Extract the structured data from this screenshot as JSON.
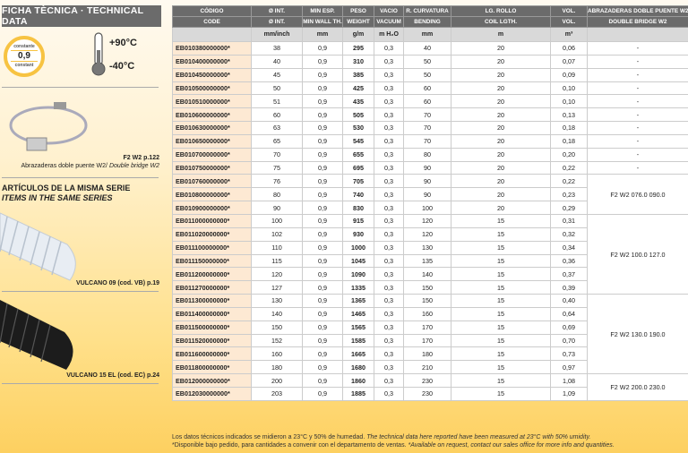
{
  "left": {
    "title": "FICHA TÈCNICA · TECHNICAL DATA",
    "badge": {
      "top": "constante",
      "value": "0,9",
      "bottom": "constant"
    },
    "temp_max": "+90°C",
    "temp_min": "-40°C",
    "accessory": {
      "code": "F2 W2 p.122",
      "desc_es": "Abrazaderas doble puente W2/",
      "desc_en": "Double bridge W2"
    },
    "series_title_es": "ARTÍCULOS DE LA MISMA SERIE",
    "series_title_en": "ITEMS IN THE SAME SERIES",
    "series": [
      {
        "label": "VULCANO 09 (cod. VB) p.19"
      },
      {
        "label": "VULCANO 15 EL (cod. EC) p.24"
      }
    ]
  },
  "table": {
    "header_es": [
      "CÓDIGO",
      "Ø INT.",
      "MIN ESP.",
      "PESO",
      "VACIO",
      "R. CURVATURA",
      "LG. ROLLO",
      "VOL.",
      "ABRAZADERAS DOBLE PUENTE W2"
    ],
    "header_en": [
      "CODE",
      "Ø INT.",
      "MIN WALL TH.",
      "WEIGHT",
      "VACUUM",
      "BENDING",
      "COIL LGTH.",
      "VOL.",
      "DOUBLE BRIDGE W2"
    ],
    "units": [
      "",
      "mm/inch",
      "mm",
      "g/m",
      "m H₂O",
      "mm",
      "m",
      "m³",
      ""
    ],
    "rows": [
      [
        "EB010380000000*",
        "38",
        "0,9",
        "295",
        "0,3",
        "40",
        "20",
        "0,06"
      ],
      [
        "EB010400000000*",
        "40",
        "0,9",
        "310",
        "0,3",
        "50",
        "20",
        "0,07"
      ],
      [
        "EB010450000000*",
        "45",
        "0,9",
        "385",
        "0,3",
        "50",
        "20",
        "0,09"
      ],
      [
        "EB010500000000*",
        "50",
        "0,9",
        "425",
        "0,3",
        "60",
        "20",
        "0,10"
      ],
      [
        "EB010510000000*",
        "51",
        "0,9",
        "435",
        "0,3",
        "60",
        "20",
        "0,10"
      ],
      [
        "EB010600000000*",
        "60",
        "0,9",
        "505",
        "0,3",
        "70",
        "20",
        "0,13"
      ],
      [
        "EB010630000000*",
        "63",
        "0,9",
        "530",
        "0,3",
        "70",
        "20",
        "0,18"
      ],
      [
        "EB010650000000*",
        "65",
        "0,9",
        "545",
        "0,3",
        "70",
        "20",
        "0,18"
      ],
      [
        "EB010700000000*",
        "70",
        "0,9",
        "655",
        "0,3",
        "80",
        "20",
        "0,20"
      ],
      [
        "EB010750000000*",
        "75",
        "0,9",
        "695",
        "0,3",
        "90",
        "20",
        "0,22"
      ],
      [
        "EB010760000000*",
        "76",
        "0,9",
        "705",
        "0,3",
        "90",
        "20",
        "0,22"
      ],
      [
        "EB010800000000*",
        "80",
        "0,9",
        "740",
        "0,3",
        "90",
        "20",
        "0,23"
      ],
      [
        "EB010900000000*",
        "90",
        "0,9",
        "830",
        "0,3",
        "100",
        "20",
        "0,29"
      ],
      [
        "EB011000000000*",
        "100",
        "0,9",
        "915",
        "0,3",
        "120",
        "15",
        "0,31"
      ],
      [
        "EB011020000000*",
        "102",
        "0,9",
        "930",
        "0,3",
        "120",
        "15",
        "0,32"
      ],
      [
        "EB011100000000*",
        "110",
        "0,9",
        "1000",
        "0,3",
        "130",
        "15",
        "0,34"
      ],
      [
        "EB011150000000*",
        "115",
        "0,9",
        "1045",
        "0,3",
        "135",
        "15",
        "0,36"
      ],
      [
        "EB011200000000*",
        "120",
        "0,9",
        "1090",
        "0,3",
        "140",
        "15",
        "0,37"
      ],
      [
        "EB011270000000*",
        "127",
        "0,9",
        "1335",
        "0,3",
        "150",
        "15",
        "0,39"
      ],
      [
        "EB011300000000*",
        "130",
        "0,9",
        "1365",
        "0,3",
        "150",
        "15",
        "0,40"
      ],
      [
        "EB011400000000*",
        "140",
        "0,9",
        "1465",
        "0,3",
        "160",
        "15",
        "0,64"
      ],
      [
        "EB011500000000*",
        "150",
        "0,9",
        "1565",
        "0,3",
        "170",
        "15",
        "0,69"
      ],
      [
        "EB011520000000*",
        "152",
        "0,9",
        "1585",
        "0,3",
        "170",
        "15",
        "0,70"
      ],
      [
        "EB011600000000*",
        "160",
        "0,9",
        "1665",
        "0,3",
        "180",
        "15",
        "0,73"
      ],
      [
        "EB011800000000*",
        "180",
        "0,9",
        "1680",
        "0,3",
        "210",
        "15",
        "0,97"
      ],
      [
        "EB012000000000*",
        "200",
        "0,9",
        "1860",
        "0,3",
        "230",
        "15",
        "1,08"
      ],
      [
        "EB012030000000*",
        "203",
        "0,9",
        "1885",
        "0,3",
        "230",
        "15",
        "1,09"
      ]
    ],
    "clamps": [
      {
        "label": "-",
        "span": 1
      },
      {
        "label": "-",
        "span": 1
      },
      {
        "label": "-",
        "span": 1
      },
      {
        "label": "-",
        "span": 1
      },
      {
        "label": "-",
        "span": 1
      },
      {
        "label": "-",
        "span": 1
      },
      {
        "label": "-",
        "span": 1
      },
      {
        "label": "-",
        "span": 1
      },
      {
        "label": "-",
        "span": 1
      },
      {
        "label": "-",
        "span": 1
      },
      {
        "label": "F2 W2 076.0 090.0",
        "span": 3
      },
      {
        "label": "F2 W2 100.0 127.0",
        "span": 6
      },
      {
        "label": "F2 W2 130.0 190.0",
        "span": 6
      },
      {
        "label": "F2 W2 200.0 230.0",
        "span": 2
      }
    ]
  },
  "footer": {
    "line1_es": "Los datos técnicos indicados se midieron a 23°C y 50% de humedad.",
    "line1_en": "The technical data here reported have been measured at 23°C with 50% umidity.",
    "line2_es": "*Disponible bajo pedido, para cantidades a convenir con el departamento de ventas.",
    "line2_en": "*Available on request, contact our sales office for more info and quantities."
  }
}
